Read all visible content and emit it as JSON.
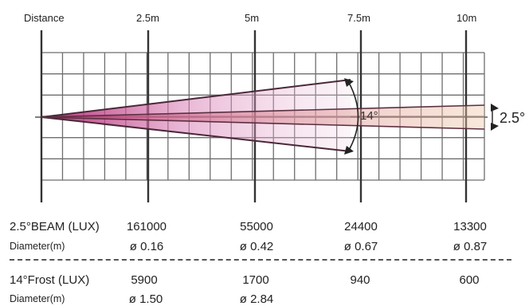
{
  "header": {
    "distance_label": "Distance",
    "distances": [
      "2.5m",
      "5m",
      "7.5m",
      "10m"
    ]
  },
  "beam_angles": {
    "frost_label": "14°",
    "beam_label": "2.5°"
  },
  "table": {
    "beam": {
      "label": "2.5°BEAM (LUX)",
      "values": [
        "161000",
        "55000",
        "24400",
        "13300"
      ],
      "diameter_label": "Diameter(m)",
      "diameters": [
        "ø 0.16",
        "ø 0.42",
        "ø 0.67",
        "ø 0.87"
      ]
    },
    "frost": {
      "label": "14°Frost (LUX)",
      "values": [
        "5900",
        "1700",
        "940",
        "600"
      ],
      "diameter_label": "Diameter(m)",
      "diameters": [
        "ø 1.50",
        "ø 2.84"
      ]
    }
  },
  "colors": {
    "grid": "#6e6e6e",
    "beam_fill": "#c0388a",
    "lines": "#5a3040"
  }
}
